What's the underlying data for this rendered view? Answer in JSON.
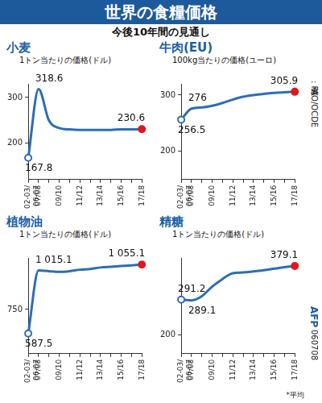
{
  "header": {
    "title": "世界の食糧価格",
    "subtitle": "今後10年間の見通し"
  },
  "source": "出典: FAO/OCDE",
  "credit": "AFP",
  "code": "060708",
  "footnote": "*平均",
  "chart_data": [
    {
      "type": "line",
      "title": "小麦",
      "subtitle": "1トン当たりの価格(ドル)",
      "categories": [
        "02-03/06-07",
        "07/08",
        null,
        "09/10",
        null,
        "11/12",
        null,
        "13/14",
        null,
        "15/16",
        null,
        "17/18"
      ],
      "values": [
        167.8,
        318.6,
        250,
        233,
        230,
        229,
        229,
        229,
        229,
        230,
        230,
        230.6
      ],
      "value_labels": [
        "167.8",
        "318.6",
        null,
        null,
        null,
        null,
        null,
        null,
        null,
        null,
        null,
        "230.6"
      ],
      "color": "#2e6db4",
      "marker": "circle",
      "data_labels": true,
      "grid": false,
      "ylim": [
        120,
        330
      ],
      "yticks": [
        200,
        300
      ]
    },
    {
      "type": "line",
      "title": "牛肉(EU)",
      "subtitle": "100kg当たりの価格(ユーロ)",
      "categories": [
        "02-03/06-07",
        "07/08",
        null,
        "09/10",
        null,
        "11/12",
        null,
        "13/14",
        null,
        "15/16",
        null,
        "17/18"
      ],
      "values": [
        256.5,
        276,
        278,
        281,
        286,
        292,
        297,
        300,
        302,
        304,
        305,
        305.9
      ],
      "value_labels": [
        "256.5",
        "276",
        null,
        null,
        null,
        null,
        null,
        null,
        null,
        null,
        null,
        "305.9"
      ],
      "color": "#2e6db4",
      "marker": "circle",
      "data_labels": true,
      "grid": false,
      "ylim": [
        150,
        320
      ],
      "yticks": [
        200,
        300
      ]
    },
    {
      "type": "line",
      "title": "植物油",
      "subtitle": "1トン当たりの価格(ドル)",
      "categories": [
        "02-03/06-07",
        "07/08",
        null,
        "09/10",
        null,
        "11/12",
        null,
        "13/14",
        null,
        "15/16",
        null,
        "17/18"
      ],
      "values": [
        587.5,
        1015.1,
        1010,
        1005,
        1010,
        1020,
        1025,
        1035,
        1040,
        1045,
        1050,
        1055.1
      ],
      "value_labels": [
        "587.5",
        "1 015.1",
        null,
        null,
        null,
        null,
        null,
        null,
        null,
        null,
        null,
        "1 055.1"
      ],
      "color": "#2e6db4",
      "marker": "circle",
      "data_labels": true,
      "grid": false,
      "ylim": [
        450,
        1100
      ],
      "yticks": [
        750
      ]
    },
    {
      "type": "line",
      "title": "精糖",
      "subtitle": "1トン当たりの価格(ドル)",
      "categories": [
        "02-03/06-07",
        "07/08",
        null,
        "09/10",
        null,
        "11/12",
        null,
        "13/14",
        null,
        "15/16",
        null,
        "17/18"
      ],
      "values": [
        291.2,
        289.1,
        300,
        325,
        345,
        360,
        362,
        365,
        368,
        372,
        376,
        379.1
      ],
      "value_labels": [
        "291.2",
        "289.1",
        null,
        null,
        null,
        null,
        null,
        null,
        null,
        null,
        null,
        "379.1"
      ],
      "color": "#2e6db4",
      "marker": "circle",
      "data_labels": true,
      "grid": false,
      "ylim": [
        150,
        400
      ],
      "yticks": [
        200
      ]
    }
  ]
}
